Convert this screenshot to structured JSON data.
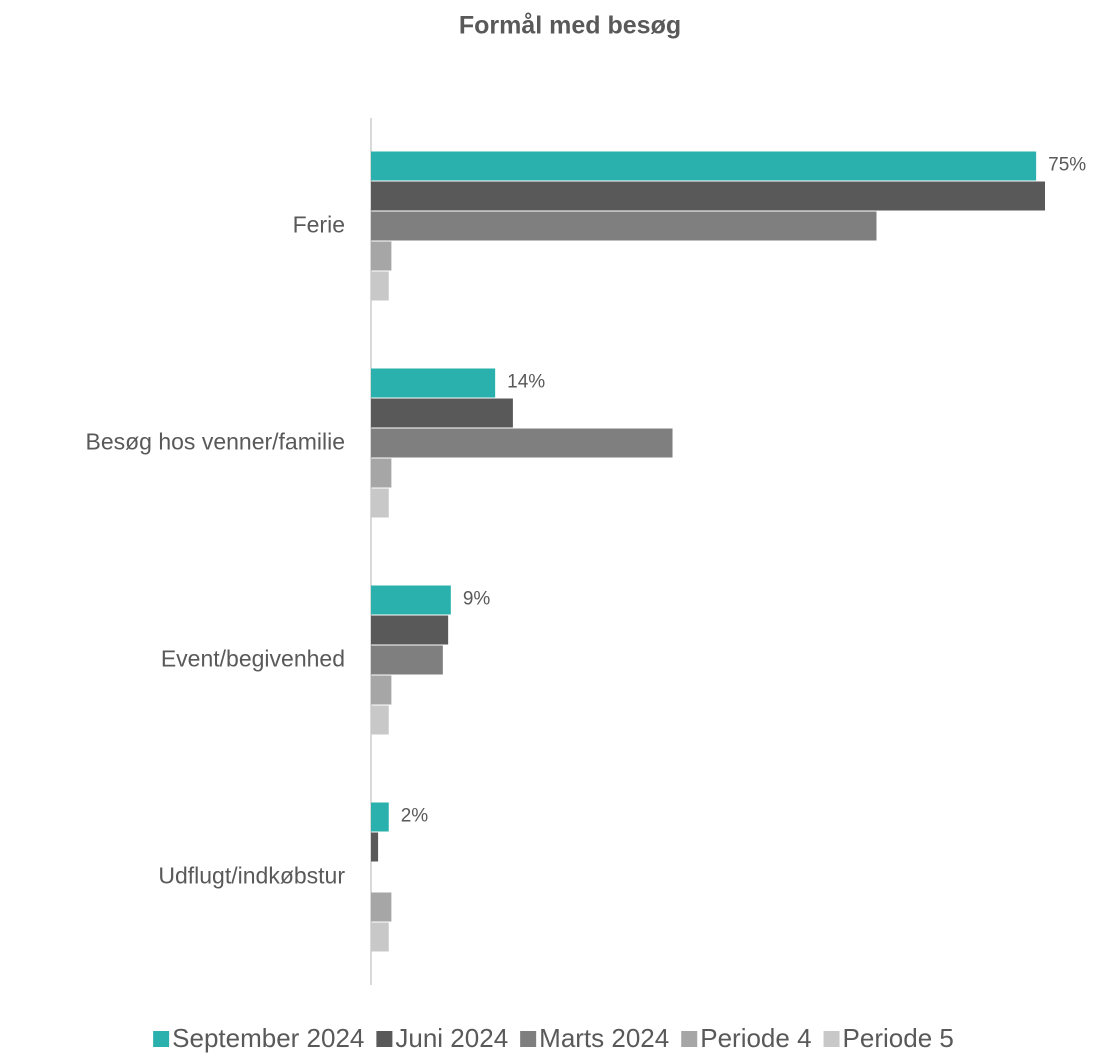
{
  "chart_data": {
    "type": "bar",
    "orientation": "horizontal",
    "title": "Formål med besøg",
    "categories": [
      "Ferie",
      "Besøg hos venner/familie",
      "Event/begivenhed",
      "Udflugt/indkøbstur"
    ],
    "series": [
      {
        "name": "September 2024",
        "color": "#2ab0ad",
        "values": [
          75,
          14,
          9,
          2
        ],
        "value_labels": [
          "75%",
          "14%",
          "9%",
          "2%"
        ]
      },
      {
        "name": "Juni 2024",
        "color": "#595959",
        "values": [
          76,
          16,
          8.7,
          0.8
        ]
      },
      {
        "name": "Marts 2024",
        "color": "#7f7f7f",
        "values": [
          57,
          34,
          8.1,
          0
        ]
      },
      {
        "name": "Periode 4",
        "color": "#a6a6a6",
        "values": [
          2.3,
          2.3,
          2.3,
          2.3
        ]
      },
      {
        "name": "Periode 5",
        "color": "#c8c8c8",
        "values": [
          2,
          2,
          2,
          2
        ]
      }
    ],
    "legend": "bottom"
  }
}
